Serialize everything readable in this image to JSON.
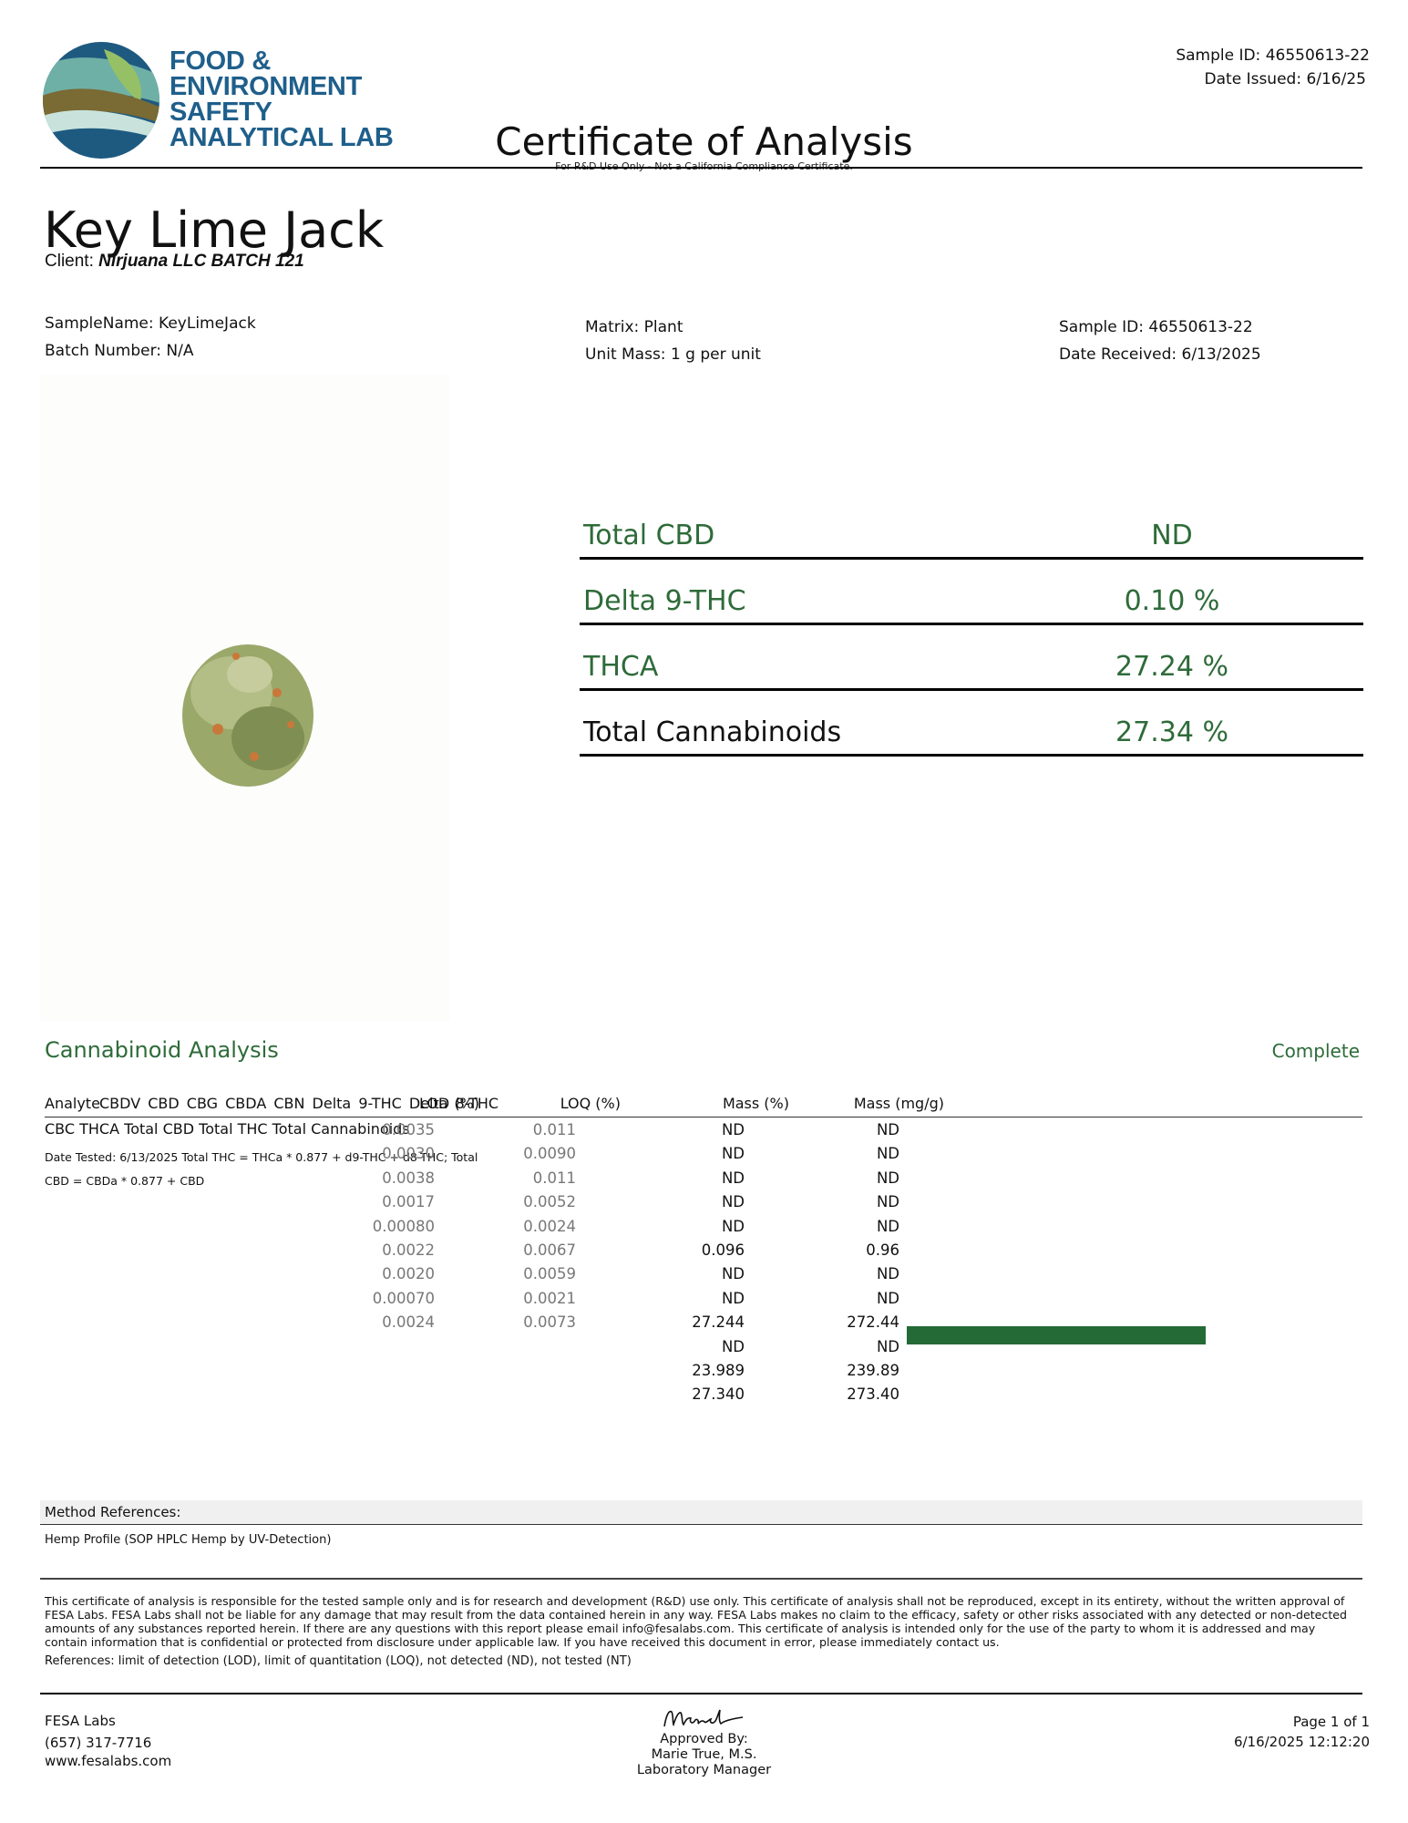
{
  "header": {
    "logo_lines": [
      "FOOD &",
      "ENVIRONMENT",
      "SAFETY",
      "ANALYTICAL LAB"
    ],
    "sample_id": "Sample ID: 46550613-22",
    "date_issued": "Date Issued: 6/16/25",
    "title": "Certificate of Analysis",
    "rd_note": "For R&D Use Only - Not a California Compliance Certificate."
  },
  "product": {
    "name": "Key Lime Jack",
    "client_label": "Client:",
    "client_value": "Nirjuana LLC BATCH 121"
  },
  "meta": {
    "sample_name": "SampleName: KeyLimeJack",
    "batch_number": "Batch Number: N/A",
    "matrix": "Matrix: Plant",
    "unit_mass": "Unit Mass: 1 g per unit",
    "sample_id": "Sample ID: 46550613-22",
    "date_received": "Date Received: 6/13/2025"
  },
  "summary": [
    {
      "label": "Total CBD",
      "value": "ND"
    },
    {
      "label": "Delta 9-THC",
      "value": "0.10 %"
    },
    {
      "label": "THCA",
      "value": "27.24 %"
    },
    {
      "label": "Total Cannabinoids",
      "value": "27.34 %"
    }
  ],
  "analysis": {
    "title": "Cannabinoid Analysis",
    "status": "Complete",
    "headers": {
      "analyte": "Analyte",
      "lod": "LOD (%)",
      "loq": "LOQ (%)",
      "mass_pct": "Mass (%)",
      "mass_mg": "Mass (mg/g)"
    },
    "analyte_list_line1": "CBDV CBD CBG CBDA CBN Delta 9-THC Delta 8-THC",
    "analyte_list_line2": "CBC THCA Total CBD Total THC Total Cannabinoids",
    "test_note_line1": "Date Tested: 6/13/2025 Total THC = THCa * 0.877 + d9-THC + d8-THC; Total",
    "test_note_line2": "CBD = CBDa * 0.877 + CBD",
    "lod": [
      "0.0035",
      "0.0030",
      "0.0038",
      "0.0017",
      "0.00080",
      "0.0022",
      "0.0020",
      "0.00070",
      "0.0024"
    ],
    "loq": [
      "0.011",
      "0.0090",
      "0.011",
      "0.0052",
      "0.0024",
      "0.0067",
      "0.0059",
      "0.0021",
      "0.0073"
    ],
    "mass_pct": [
      "ND",
      "ND",
      "ND",
      "ND",
      "ND",
      "0.096",
      "ND",
      "ND",
      "27.244",
      "ND",
      "23.989",
      "27.340"
    ],
    "mass_mg": [
      "ND",
      "ND",
      "ND",
      "ND",
      "ND",
      "0.96",
      "ND",
      "ND",
      "272.44",
      "ND",
      "239.89",
      "273.40"
    ],
    "bar_color": "#236a36"
  },
  "method": {
    "heading": "Method References:",
    "text": "Hemp Profile (SOP HPLC Hemp by UV-Detection)"
  },
  "disclaimer": "This certificate of analysis is responsible for the tested sample only and is for research and development (R&D) use only. This certificate of analysis shall not be reproduced, except in its entirety, without the written approval of FESA Labs. FESA Labs shall not be liable for any damage that may result from the data contained herein in any way. FESA Labs makes no claim to the efficacy, safety or other risks associated with any detected or non-detected amounts of any substances reported herein. If there are any questions with this report please email info@fesalabs.com. This certificate of analysis is intended only for the use of the party to whom it is addressed and may contain information that is confidential or protected from disclosure under applicable law. If you have received this document in error, please immediately contact us.",
  "references": "References: limit of detection (LOD), limit of quantitation (LOQ), not detected (ND), not tested (NT)",
  "footer": {
    "company": "FESA Labs",
    "phone": "(657) 317-7716",
    "website": "www.fesalabs.com",
    "signature": "Marie",
    "approved_by": "Approved By:",
    "approver_name": "Marie True, M.S.",
    "approver_title": "Laboratory Manager",
    "page": "Page 1 of 1",
    "timestamp": "6/16/2025 12:12:20"
  },
  "colors": {
    "accent_green": "#2e6b39",
    "logo_blue": "#1f5f8b"
  }
}
